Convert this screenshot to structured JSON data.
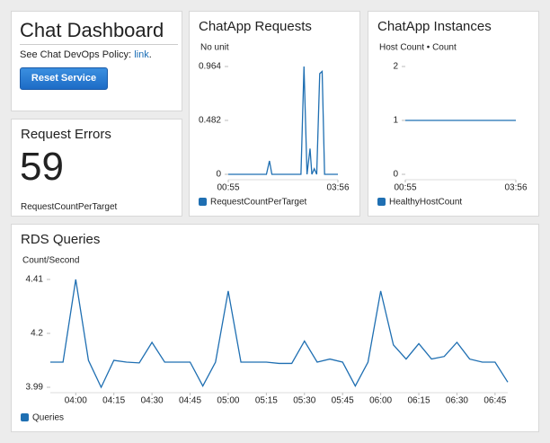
{
  "header": {
    "title": "Chat Dashboard",
    "policy_text": "See Chat DevOps Policy:",
    "policy_link": "link",
    "policy_suffix": ".",
    "button": "Reset Service"
  },
  "errors": {
    "title": "Request Errors",
    "value": 59,
    "metric": "RequestCountPerTarget"
  },
  "chart_data": [
    {
      "type": "line",
      "title": "ChatApp Requests",
      "ylabel": "No unit",
      "x": [
        55,
        118,
        123,
        127,
        175,
        180,
        185,
        190,
        193,
        197,
        201,
        206,
        210,
        214,
        236
      ],
      "series": [
        {
          "name": "RequestCountPerTarget",
          "color": "#1f6fb2",
          "values": [
            0,
            0,
            0.12,
            0,
            0,
            0.964,
            0,
            0.23,
            0,
            0.05,
            0,
            0.9,
            0.92,
            0,
            0
          ]
        }
      ],
      "xlim": [
        55,
        236
      ],
      "xticks": [
        {
          "value": 55,
          "label": "00:55"
        },
        {
          "value": 236,
          "label": "03:56"
        }
      ],
      "ylim": [
        0,
        0.964
      ],
      "yticks": [
        0,
        0.482,
        0.964
      ],
      "grid": false
    },
    {
      "type": "line",
      "title": "ChatApp Instances",
      "ylabel": "Host Count • Count",
      "x": [
        55,
        236
      ],
      "series": [
        {
          "name": "HealthyHostCount",
          "color": "#1f6fb2",
          "values": [
            1,
            1
          ]
        }
      ],
      "xlim": [
        55,
        236
      ],
      "xticks": [
        {
          "value": 55,
          "label": "00:55"
        },
        {
          "value": 236,
          "label": "03:56"
        }
      ],
      "ylim": [
        0,
        2
      ],
      "yticks": [
        0,
        1,
        2
      ],
      "grid": false
    },
    {
      "type": "line",
      "title": "RDS Queries",
      "ylabel": "Count/Second",
      "x": [
        230,
        235,
        240,
        245,
        250,
        255,
        260,
        265,
        270,
        275,
        280,
        285,
        290,
        295,
        300,
        305,
        310,
        315,
        320,
        325,
        330,
        335,
        340,
        345,
        350,
        355,
        360,
        365,
        370,
        375,
        380,
        385,
        390,
        395,
        400,
        405,
        410
      ],
      "series": [
        {
          "name": "Queries",
          "color": "#1f6fb2",
          "values": [
            4.088,
            4.088,
            4.41,
            4.095,
            3.99,
            4.095,
            4.088,
            4.085,
            4.165,
            4.088,
            4.088,
            4.088,
            3.995,
            4.088,
            4.365,
            4.088,
            4.088,
            4.088,
            4.083,
            4.083,
            4.17,
            4.088,
            4.1,
            4.088,
            3.995,
            4.088,
            4.365,
            4.155,
            4.1,
            4.16,
            4.1,
            4.11,
            4.165,
            4.1,
            4.088,
            4.088,
            4.01
          ]
        }
      ],
      "xlim": [
        230,
        410
      ],
      "xticks": [
        {
          "value": 240,
          "label": "04:00"
        },
        {
          "value": 255,
          "label": "04:15"
        },
        {
          "value": 270,
          "label": "04:30"
        },
        {
          "value": 285,
          "label": "04:45"
        },
        {
          "value": 300,
          "label": "05:00"
        },
        {
          "value": 315,
          "label": "05:15"
        },
        {
          "value": 330,
          "label": "05:30"
        },
        {
          "value": 345,
          "label": "05:45"
        },
        {
          "value": 360,
          "label": "06:00"
        },
        {
          "value": 375,
          "label": "06:15"
        },
        {
          "value": 390,
          "label": "06:30"
        },
        {
          "value": 405,
          "label": "06:45"
        }
      ],
      "ylim": [
        3.99,
        4.41
      ],
      "yticks": [
        3.99,
        4.2,
        4.41
      ],
      "grid": false
    }
  ]
}
